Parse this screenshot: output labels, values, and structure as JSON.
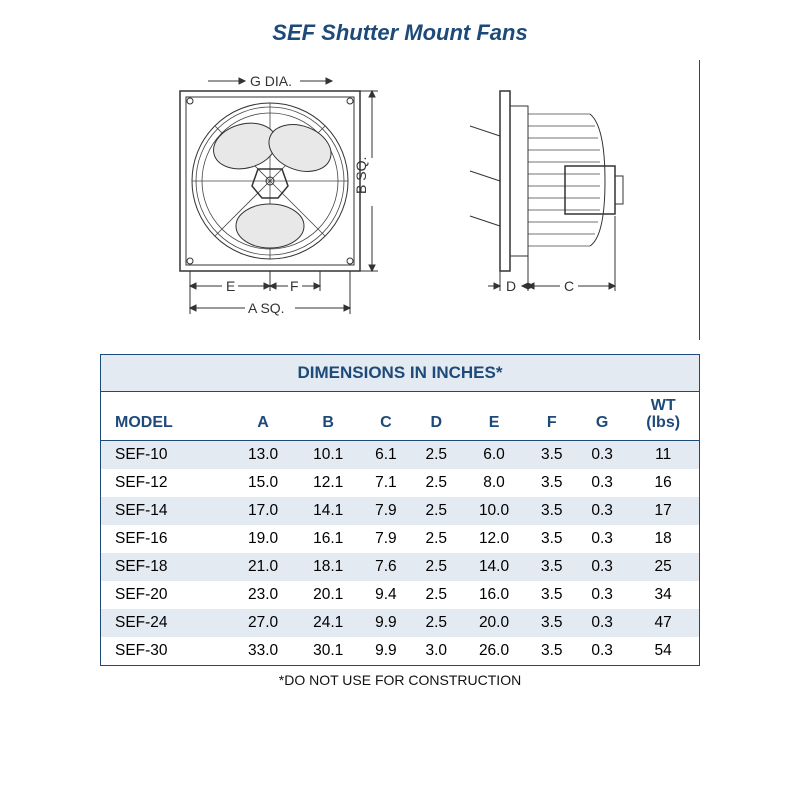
{
  "title": "SEF Shutter Mount Fans",
  "title_color": "#1e4a7a",
  "diagram_labels": {
    "g_dia": "G DIA.",
    "b_sq": "B SQ.",
    "e": "E",
    "f": "F",
    "a_sq": "A SQ.",
    "d": "D",
    "c": "C"
  },
  "table": {
    "header": "DIMENSIONS IN INCHES*",
    "header_bg": "#e3eaf1",
    "header_color": "#1e4a7a",
    "border_color": "#1e4a7a",
    "row_alt_bg": "#e3eaf1",
    "columns": [
      "MODEL",
      "A",
      "B",
      "C",
      "D",
      "E",
      "F",
      "G",
      "WT (lbs)"
    ],
    "wt_top": "WT",
    "wt_bottom": "(lbs)",
    "rows": [
      [
        "SEF-10",
        "13.0",
        "10.1",
        "6.1",
        "2.5",
        "6.0",
        "3.5",
        "0.3",
        "11"
      ],
      [
        "SEF-12",
        "15.0",
        "12.1",
        "7.1",
        "2.5",
        "8.0",
        "3.5",
        "0.3",
        "16"
      ],
      [
        "SEF-14",
        "17.0",
        "14.1",
        "7.9",
        "2.5",
        "10.0",
        "3.5",
        "0.3",
        "17"
      ],
      [
        "SEF-16",
        "19.0",
        "16.1",
        "7.9",
        "2.5",
        "12.0",
        "3.5",
        "0.3",
        "18"
      ],
      [
        "SEF-18",
        "21.0",
        "18.1",
        "7.6",
        "2.5",
        "14.0",
        "3.5",
        "0.3",
        "25"
      ],
      [
        "SEF-20",
        "23.0",
        "20.1",
        "9.4",
        "2.5",
        "16.0",
        "3.5",
        "0.3",
        "34"
      ],
      [
        "SEF-24",
        "27.0",
        "24.1",
        "9.9",
        "2.5",
        "20.0",
        "3.5",
        "0.3",
        "47"
      ],
      [
        "SEF-30",
        "33.0",
        "30.1",
        "9.9",
        "3.0",
        "26.0",
        "3.5",
        "0.3",
        "54"
      ]
    ]
  },
  "footnote": "*DO NOT USE FOR CONSTRUCTION"
}
